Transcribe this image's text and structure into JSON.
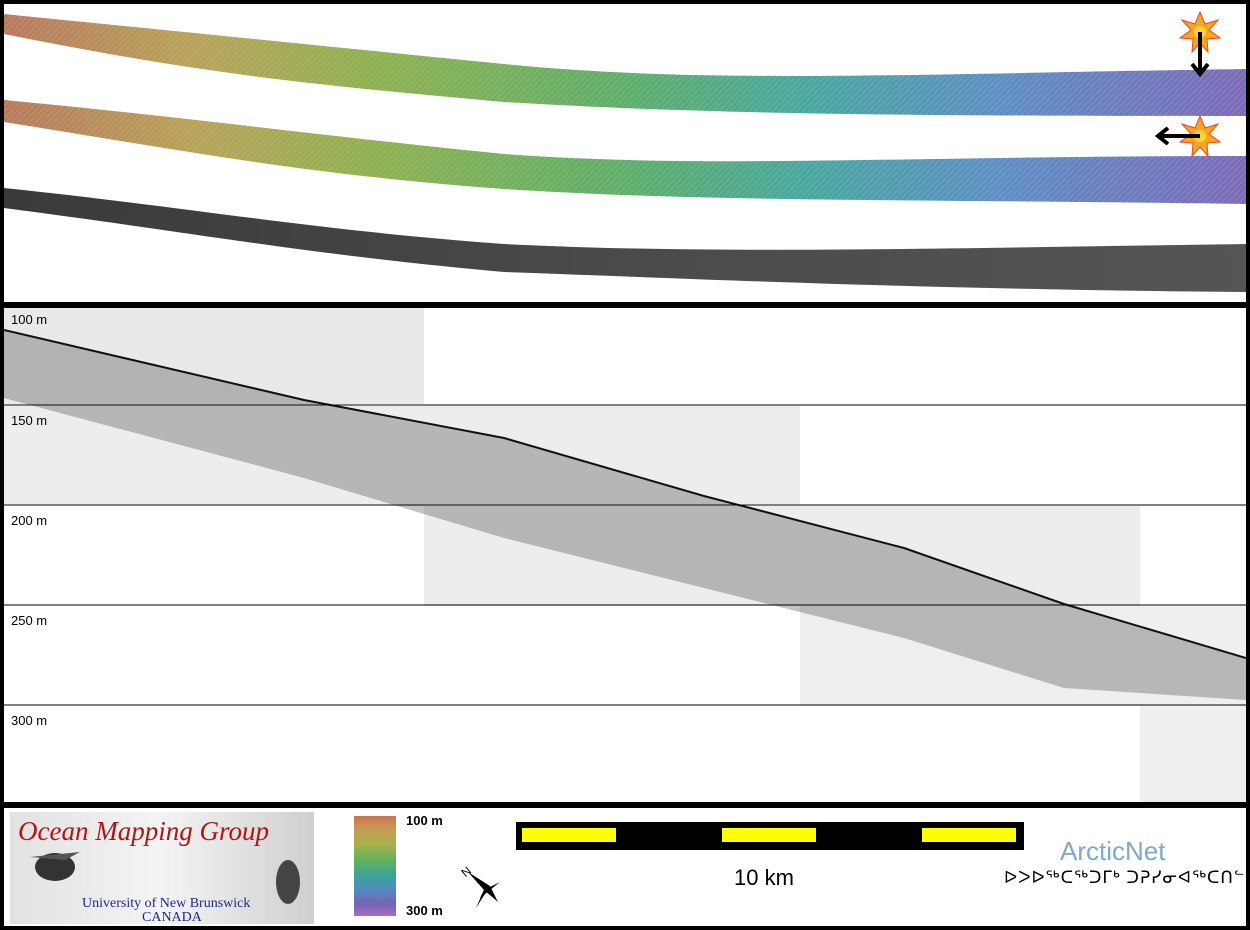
{
  "swath_panel": {
    "tracks": [
      {
        "type": "bathymetry-colored"
      },
      {
        "type": "bathymetry-colored"
      },
      {
        "type": "backscatter-grayscale"
      }
    ],
    "icons": [
      "sun-direction-down-icon",
      "sun-direction-left-icon"
    ]
  },
  "profile_panel": {
    "depth_labels": [
      "100 m",
      "150 m",
      "200 m",
      "250 m",
      "300 m"
    ]
  },
  "footer": {
    "logo_title": "Ocean Mapping Group",
    "logo_university": "University of New Brunswick",
    "logo_country": "CANADA",
    "colorbar_top": "100 m",
    "colorbar_bottom": "300 m",
    "scale_label": "10 km",
    "north_label": "N",
    "arcticnet_title": "ArcticNet",
    "arcticnet_syllabics": "ᐅᐳᐅᖅᑕᖅᑐᒥᒃ ᑐᕈᓯᓂᐊᖅᑕᑎᓪ"
  },
  "colors": {
    "frame": "#000000",
    "scale_yellow": "#ffff00",
    "omg_red": "#b01414",
    "arcticnet_blue": "#7ea8cc",
    "sun_orange": "#f5a623"
  }
}
